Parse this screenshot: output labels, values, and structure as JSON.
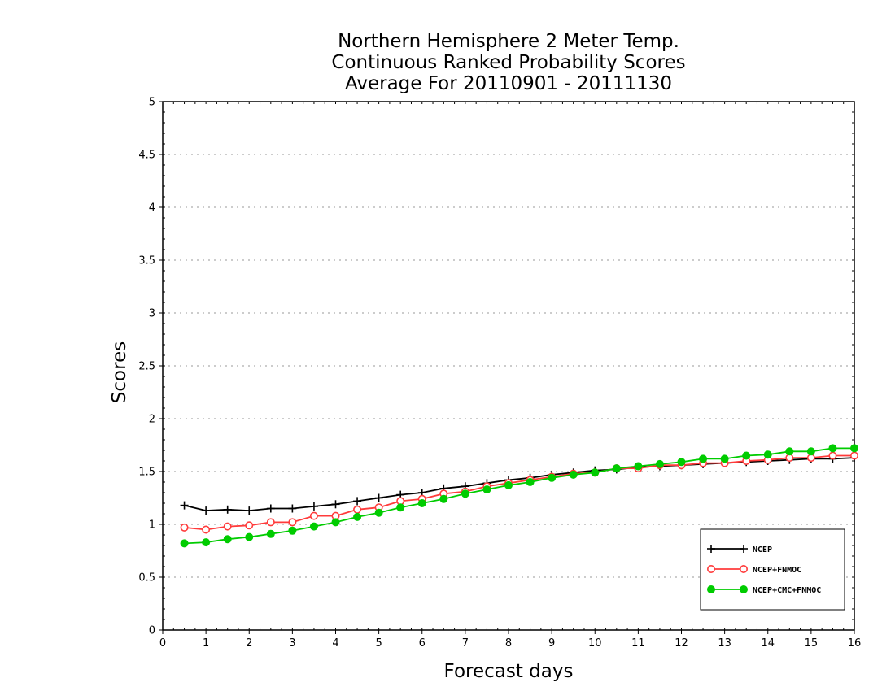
{
  "chart_data": {
    "type": "line",
    "title_lines": [
      "Northern Hemisphere 2 Meter Temp.",
      "Continuous Ranked Probability Scores",
      "Average For 20110901 - 20111130"
    ],
    "xlabel": "Forecast days",
    "ylabel": "Scores",
    "xlim": [
      0,
      16
    ],
    "ylim": [
      0,
      5
    ],
    "xticks": [
      "0",
      "1",
      "2",
      "3",
      "4",
      "5",
      "6",
      "7",
      "8",
      "9",
      "10",
      "11",
      "12",
      "13",
      "14",
      "15",
      "16"
    ],
    "yticks": [
      "0",
      "0.5",
      "1",
      "1.5",
      "2",
      "2.5",
      "3",
      "3.5",
      "4",
      "4.5",
      "5"
    ],
    "grid": "horizontal dotted",
    "legend_position": "bottom-right",
    "x": [
      0.5,
      1,
      1.5,
      2,
      2.5,
      3,
      3.5,
      4,
      4.5,
      5,
      5.5,
      6,
      6.5,
      7,
      7.5,
      8,
      8.5,
      9,
      9.5,
      10,
      10.5,
      11,
      11.5,
      12,
      12.5,
      13,
      13.5,
      14,
      14.5,
      15,
      15.5,
      16
    ],
    "series": [
      {
        "name": "NCEP",
        "color": "#000000",
        "marker": "plus",
        "values": [
          1.18,
          1.13,
          1.14,
          1.13,
          1.15,
          1.15,
          1.17,
          1.19,
          1.22,
          1.25,
          1.28,
          1.3,
          1.34,
          1.36,
          1.39,
          1.42,
          1.44,
          1.47,
          1.49,
          1.51,
          1.52,
          1.54,
          1.55,
          1.56,
          1.57,
          1.58,
          1.59,
          1.6,
          1.61,
          1.62,
          1.62,
          1.63
        ]
      },
      {
        "name": "NCEP+FNMOC",
        "color": "#ff3b3b",
        "marker": "open-circle",
        "values": [
          0.97,
          0.95,
          0.98,
          0.99,
          1.02,
          1.02,
          1.08,
          1.08,
          1.14,
          1.16,
          1.22,
          1.24,
          1.29,
          1.31,
          1.36,
          1.39,
          1.42,
          1.45,
          1.48,
          1.49,
          1.53,
          1.53,
          1.56,
          1.56,
          1.58,
          1.58,
          1.6,
          1.61,
          1.63,
          1.63,
          1.65,
          1.65
        ]
      },
      {
        "name": "NCEP+CMC+FNMOC",
        "color": "#00cc00",
        "marker": "filled-circle",
        "values": [
          0.82,
          0.83,
          0.86,
          0.88,
          0.91,
          0.94,
          0.98,
          1.02,
          1.07,
          1.11,
          1.16,
          1.2,
          1.24,
          1.29,
          1.33,
          1.37,
          1.4,
          1.44,
          1.47,
          1.49,
          1.53,
          1.55,
          1.57,
          1.59,
          1.62,
          1.62,
          1.65,
          1.66,
          1.69,
          1.69,
          1.72,
          1.72
        ]
      }
    ]
  }
}
